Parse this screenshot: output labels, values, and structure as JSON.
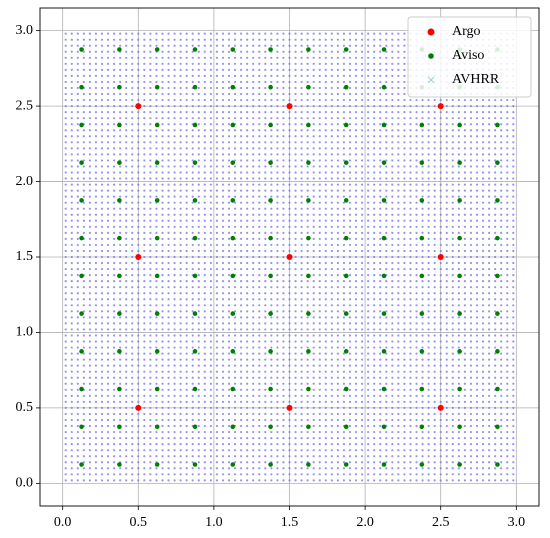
{
  "chart_data": {
    "type": "scatter",
    "xlim": [
      -0.15,
      3.15
    ],
    "ylim": [
      -0.15,
      3.15
    ],
    "xticks": [
      {
        "value": 0,
        "label": "0.0"
      },
      {
        "value": 0.5,
        "label": "0.5"
      },
      {
        "value": 1,
        "label": "1.0"
      },
      {
        "value": 1.5,
        "label": "1.5"
      },
      {
        "value": 2,
        "label": "2.0"
      },
      {
        "value": 2.5,
        "label": "2.5"
      },
      {
        "value": 3,
        "label": "3.0"
      }
    ],
    "yticks": [
      {
        "value": 0,
        "label": "0.0"
      },
      {
        "value": 0.5,
        "label": "0.5"
      },
      {
        "value": 1,
        "label": "1.0"
      },
      {
        "value": 1.5,
        "label": "1.5"
      },
      {
        "value": 2,
        "label": "2.0"
      },
      {
        "value": 2.5,
        "label": "2.5"
      },
      {
        "value": 3,
        "label": "3.0"
      }
    ],
    "grid": true,
    "legend": "upper right",
    "series": [
      {
        "name": "AVHRR",
        "color": "#7070f0",
        "x_grid": [
          0.02,
          0.06,
          0.1,
          0.14,
          0.18,
          0.22,
          0.26,
          0.3,
          0.34,
          0.38,
          0.42,
          0.46,
          0.5,
          0.54,
          0.58,
          0.62,
          0.66,
          0.7,
          0.74,
          0.78,
          0.82,
          0.86,
          0.9,
          0.94,
          0.98,
          1.02,
          1.06,
          1.1,
          1.14,
          1.18,
          1.22,
          1.26,
          1.3,
          1.34,
          1.38,
          1.42,
          1.46,
          1.5,
          1.54,
          1.58,
          1.62,
          1.66,
          1.7,
          1.74,
          1.78,
          1.82,
          1.86,
          1.9,
          1.94,
          1.98,
          2.02,
          2.06,
          2.1,
          2.14,
          2.18,
          2.22,
          2.26,
          2.3,
          2.34,
          2.38,
          2.42,
          2.46,
          2.5,
          2.54,
          2.58,
          2.62,
          2.66,
          2.7,
          2.74,
          2.78,
          2.82,
          2.86,
          2.9,
          2.94,
          2.98
        ],
        "y_grid": [
          0.02,
          0.06,
          0.1,
          0.14,
          0.18,
          0.22,
          0.26,
          0.3,
          0.34,
          0.38,
          0.42,
          0.46,
          0.5,
          0.54,
          0.58,
          0.62,
          0.66,
          0.7,
          0.74,
          0.78,
          0.82,
          0.86,
          0.9,
          0.94,
          0.98,
          1.02,
          1.06,
          1.1,
          1.14,
          1.18,
          1.22,
          1.26,
          1.3,
          1.34,
          1.38,
          1.42,
          1.46,
          1.5,
          1.54,
          1.58,
          1.62,
          1.66,
          1.7,
          1.74,
          1.78,
          1.82,
          1.86,
          1.9,
          1.94,
          1.98,
          2.02,
          2.06,
          2.1,
          2.14,
          2.18,
          2.22,
          2.26,
          2.3,
          2.34,
          2.38,
          2.42,
          2.46,
          2.5,
          2.54,
          2.58,
          2.62,
          2.66,
          2.7,
          2.74,
          2.78,
          2.82,
          2.86,
          2.9,
          2.94,
          2.98
        ]
      },
      {
        "name": "Aviso",
        "color": "#008000",
        "x_grid": [
          0.125,
          0.375,
          0.625,
          0.875,
          1.125,
          1.375,
          1.625,
          1.875,
          2.125,
          2.375,
          2.625,
          2.875
        ],
        "y_grid": [
          0.125,
          0.375,
          0.625,
          0.875,
          1.125,
          1.375,
          1.625,
          1.875,
          2.125,
          2.375,
          2.625,
          2.875
        ]
      },
      {
        "name": "Argo",
        "color": "#ff0000",
        "x_grid": [
          0.5,
          1.5,
          2.5
        ],
        "y_grid": [
          0.5,
          1.5,
          2.5
        ]
      }
    ]
  }
}
